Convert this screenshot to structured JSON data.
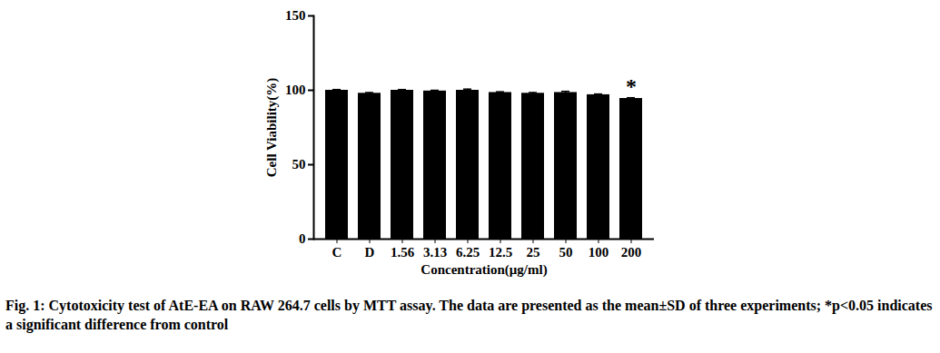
{
  "chart_data": {
    "type": "bar",
    "caption": "Fig. 1: Cytotoxicity test of AtE-EA on RAW 264.7 cells by MTT assay. The data are presented as the mean±SD of three experiments; *p<0.05 indicates a significant difference from control",
    "x_label": "Concentration(μg/ml)",
    "y_label": "Cell Viability(%)",
    "categories": [
      "C",
      "D",
      "1.56",
      "3.13",
      "6.25",
      "12.5",
      "25",
      "50",
      "100",
      "200"
    ],
    "values": [
      100,
      98,
      100,
      99.5,
      100,
      98.5,
      98,
      98.5,
      97,
      94.5
    ],
    "errors": [
      0.5,
      0.5,
      0.5,
      0.5,
      0.8,
      0.5,
      0.5,
      0.8,
      0.5,
      0.5
    ],
    "color": "#000000",
    "ylim": [
      0,
      150
    ],
    "yticks": [
      0,
      50,
      100,
      150
    ],
    "annotations": [
      {
        "category": "200",
        "text": "*"
      }
    ],
    "grid": false
  }
}
